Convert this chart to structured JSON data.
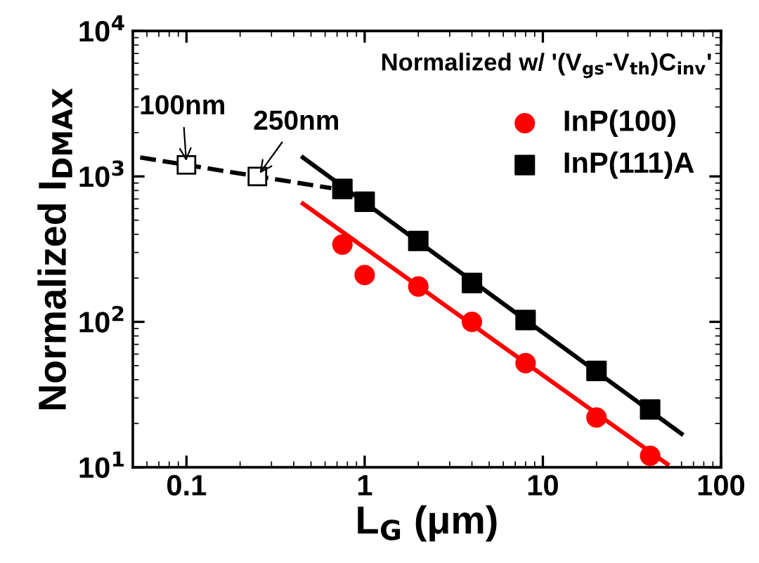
{
  "chart_data": {
    "type": "scatter",
    "xlabel": "L$_{G}$ (μm)",
    "ylabel": "Normalized I$_{DMAX}$",
    "log": "xy",
    "xlim": [
      0.05,
      100
    ],
    "ylim": [
      10,
      10000
    ],
    "xticks": [
      0.1,
      1,
      10,
      100
    ],
    "yticks": [
      {
        "value": 10,
        "label": "10$^{1}$"
      },
      {
        "value": 100,
        "label": "10$^{2}$"
      },
      {
        "value": 1000,
        "label": "10$^{3}$"
      },
      {
        "value": 10000,
        "label": "10$^{4}$"
      }
    ],
    "grid": false,
    "legend": "top right",
    "series": [
      {
        "name": "InP(100)",
        "marker": "circle",
        "color": "#ff0000",
        "x": [
          0.75,
          1,
          2,
          4,
          8,
          20,
          40
        ],
        "values": [
          340,
          210,
          175,
          100,
          52,
          22,
          12
        ]
      },
      {
        "type": "line",
        "marker": "none",
        "line_style": "solid",
        "color": "#ff0000",
        "x": [
          0.45,
          50
        ],
        "values": [
          650,
          10.5
        ]
      },
      {
        "name": "InP(111)A",
        "marker": "square",
        "color": "#000000",
        "x": [
          0.75,
          1,
          2,
          4,
          8,
          20,
          40
        ],
        "values": [
          820,
          670,
          360,
          185,
          103,
          46,
          25
        ]
      },
      {
        "type": "line",
        "marker": "none",
        "line_style": "solid",
        "color": "#000000",
        "x": [
          0.45,
          60
        ],
        "values": [
          1350,
          17
        ]
      },
      {
        "type": "line",
        "marker": "square",
        "line_style": "dashed",
        "color": "#000000",
        "x": [
          0.055,
          0.1,
          0.25,
          0.65
        ],
        "values": [
          1350,
          1200,
          1000,
          830
        ]
      }
    ],
    "annotations": [
      "Normalized w/ '(V$_{gs}$-V$_{th}$)C$_{inv}$'",
      {
        "text": "100nm",
        "x": 0.1,
        "y": 1200
      },
      {
        "text": "250nm",
        "x": 0.25,
        "y": 1000
      }
    ]
  }
}
